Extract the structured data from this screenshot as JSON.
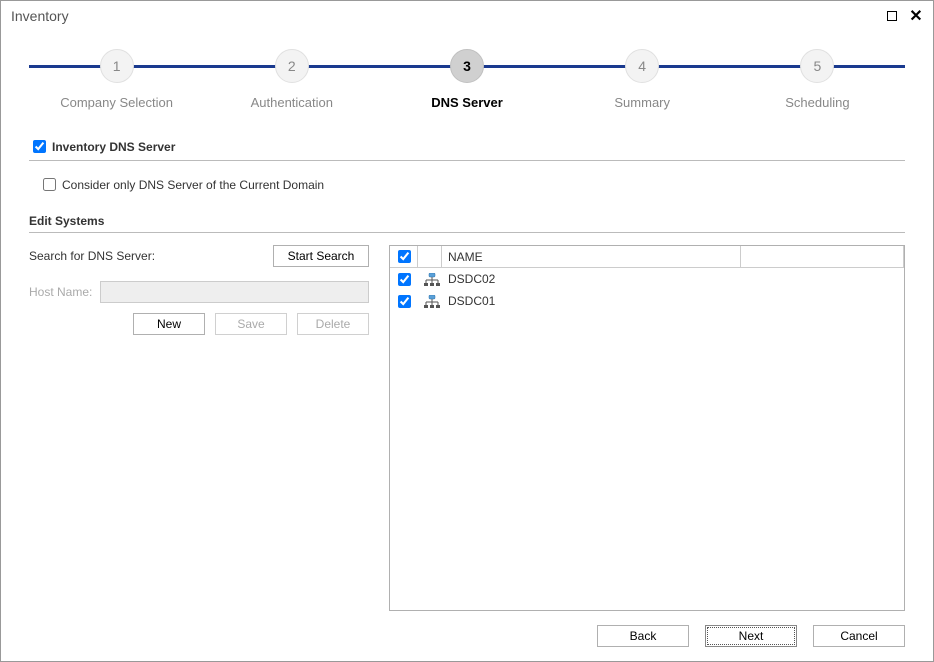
{
  "window": {
    "title": "Inventory"
  },
  "stepper": {
    "steps": [
      {
        "num": "1",
        "label": "Company Selection",
        "active": false
      },
      {
        "num": "2",
        "label": "Authentication",
        "active": false
      },
      {
        "num": "3",
        "label": "DNS Server",
        "active": true
      },
      {
        "num": "4",
        "label": "Summary",
        "active": false
      },
      {
        "num": "5",
        "label": "Scheduling",
        "active": false
      }
    ]
  },
  "options": {
    "inventory_dns_label": "Inventory DNS Server",
    "inventory_dns_checked": true,
    "consider_only_label": "Consider only DNS Server of the Current Domain",
    "consider_only_checked": false
  },
  "edit": {
    "title": "Edit Systems",
    "search_label": "Search for DNS Server:",
    "start_search_label": "Start Search",
    "host_label": "Host Name:",
    "host_value": "",
    "new_label": "New",
    "save_label": "Save",
    "delete_label": "Delete"
  },
  "grid": {
    "header_name": "NAME",
    "header_checked": true,
    "rows": [
      {
        "checked": true,
        "name": "DSDC02"
      },
      {
        "checked": true,
        "name": "DSDC01"
      }
    ]
  },
  "footer": {
    "back": "Back",
    "next": "Next",
    "cancel": "Cancel"
  },
  "colors": {
    "step_line": "#1a3a8f"
  }
}
